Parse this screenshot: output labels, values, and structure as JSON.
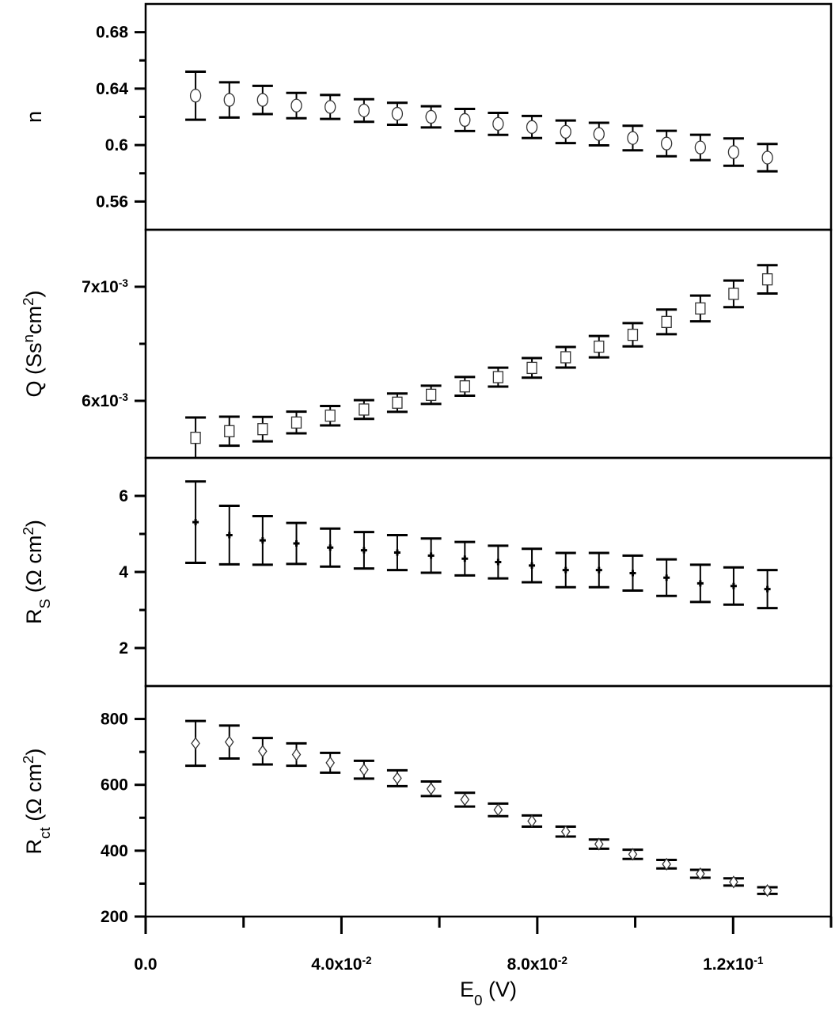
{
  "chart_data": [
    {
      "type": "scatter",
      "panel": "n",
      "ylabel": [
        {
          "t": "n"
        }
      ],
      "ylim": [
        0.54,
        0.7
      ],
      "major_ticks": [
        0.56,
        0.6,
        0.64,
        0.68
      ],
      "minor_ticks": [
        0.58,
        0.62,
        0.66
      ],
      "tick_labels": [
        {
          "base": "0.56"
        },
        {
          "base": "0.6"
        },
        {
          "base": "0.64"
        },
        {
          "base": "0.68"
        }
      ],
      "marker": "circle",
      "y": [
        0.635,
        0.632,
        0.632,
        0.628,
        0.627,
        0.6245,
        0.6222,
        0.62,
        0.6178,
        0.615,
        0.6128,
        0.6094,
        0.6078,
        0.605,
        0.6011,
        0.5983,
        0.595,
        0.5911
      ],
      "yerr": [
        0.017,
        0.0125,
        0.01,
        0.009,
        0.0085,
        0.008,
        0.0078,
        0.0075,
        0.0078,
        0.0078,
        0.0078,
        0.008,
        0.008,
        0.0087,
        0.009,
        0.009,
        0.0097,
        0.0097
      ]
    },
    {
      "type": "scatter",
      "panel": "Q",
      "ylabel": [
        {
          "t": "Q (Ss"
        },
        {
          "t": "n",
          "sup": true
        },
        {
          "t": "cm"
        },
        {
          "t": "2",
          "sup": true
        },
        {
          "t": ")"
        }
      ],
      "ylim": [
        0.0055,
        0.0075
      ],
      "major_ticks": [
        0.006,
        0.007
      ],
      "minor_ticks": [
        0.0065
      ],
      "tick_labels": [
        {
          "base": "6x10",
          "sup": "-3"
        },
        {
          "base": "7x10",
          "sup": "-3"
        }
      ],
      "marker": "square",
      "y": [
        0.005676,
        0.005734,
        0.005752,
        0.00581,
        0.00587,
        0.005924,
        0.005984,
        0.006053,
        0.006127,
        0.006208,
        0.006289,
        0.006382,
        0.006475,
        0.006579,
        0.006692,
        0.00681,
        0.006938,
        0.007065
      ],
      "yerr": [
        0.000178,
        0.000127,
        0.000107,
        9.5e-05,
        8.5e-05,
        8.2e-05,
        8e-05,
        8e-05,
        8.2e-05,
        8.3e-05,
        8.6e-05,
        9e-05,
        9.4e-05,
        0.000102,
        0.000108,
        0.000113,
        0.000117,
        0.000124
      ]
    },
    {
      "type": "scatter",
      "panel": "Rs",
      "ylabel": [
        {
          "t": "R"
        },
        {
          "t": "S",
          "sub": true
        },
        {
          "t": " (Ω cm"
        },
        {
          "t": "2",
          "sup": true
        },
        {
          "t": ")"
        }
      ],
      "ylim": [
        1,
        7
      ],
      "major_ticks": [
        2,
        4,
        6
      ],
      "minor_ticks": [
        3,
        5
      ],
      "tick_labels": [
        {
          "base": "2"
        },
        {
          "base": "4"
        },
        {
          "base": "6"
        }
      ],
      "marker": "plus",
      "y": [
        5.31,
        4.97,
        4.83,
        4.75,
        4.64,
        4.57,
        4.51,
        4.43,
        4.35,
        4.26,
        4.17,
        4.05,
        4.05,
        3.97,
        3.85,
        3.7,
        3.63,
        3.55
      ],
      "yerr": [
        1.07,
        0.77,
        0.64,
        0.54,
        0.5,
        0.48,
        0.46,
        0.45,
        0.44,
        0.43,
        0.44,
        0.45,
        0.45,
        0.46,
        0.48,
        0.49,
        0.49,
        0.5
      ]
    },
    {
      "type": "scatter",
      "panel": "Rct",
      "ylabel": [
        {
          "t": "R"
        },
        {
          "t": "ct",
          "sub": true
        },
        {
          "t": " (Ω cm"
        },
        {
          "t": "2",
          "sup": true
        },
        {
          "t": ")"
        }
      ],
      "ylim": [
        200,
        900
      ],
      "major_ticks": [
        200,
        400,
        600,
        800
      ],
      "minor_ticks": [
        300,
        500,
        700
      ],
      "tick_labels": [
        {
          "base": "200"
        },
        {
          "base": "400"
        },
        {
          "base": "600"
        },
        {
          "base": "800"
        }
      ],
      "marker": "diamond",
      "y": [
        726,
        730,
        702,
        692,
        667,
        646,
        620,
        588,
        555,
        524,
        490,
        458,
        420,
        389,
        359,
        330,
        305,
        279
      ],
      "yerr": [
        68,
        50,
        40,
        34,
        30,
        27,
        24,
        22,
        21,
        19,
        17,
        15,
        14,
        14,
        13,
        12,
        11,
        10
      ]
    }
  ],
  "x_axis": {
    "label": [
      {
        "t": "E"
      },
      {
        "t": "0",
        "sub": true
      },
      {
        "t": " (V)"
      }
    ],
    "xlim": [
      0,
      0.14
    ],
    "major_ticks": [
      0,
      0.04,
      0.08,
      0.12
    ],
    "minor_ticks": [
      0.02,
      0.06,
      0.1,
      0.14
    ],
    "tick_labels": [
      {
        "base": "0.0"
      },
      {
        "base": "4.0x10",
        "sup": "-2"
      },
      {
        "base": "8.0x10",
        "sup": "-2"
      },
      {
        "base": "1.2x10",
        "sup": "-1"
      }
    ],
    "x": [
      0.0102,
      0.0171,
      0.0239,
      0.0308,
      0.0377,
      0.0446,
      0.0514,
      0.0583,
      0.0652,
      0.072,
      0.0789,
      0.0858,
      0.0926,
      0.0995,
      0.1064,
      0.1133,
      0.1201,
      0.127
    ]
  },
  "colors": {
    "axis": "#000000",
    "marker": "#000000",
    "background": "#ffffff"
  }
}
